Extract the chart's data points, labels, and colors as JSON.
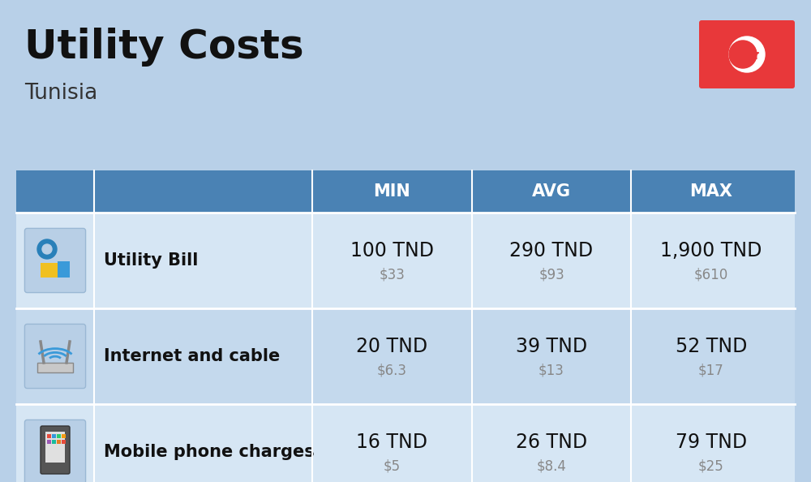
{
  "title": "Utility Costs",
  "subtitle": "Tunisia",
  "background_color": "#b8d0e8",
  "header_bg_color": "#4a82b4",
  "header_text_color": "#ffffff",
  "row_bg_color_1": "#d6e6f4",
  "row_bg_color_2": "#c4d9ed",
  "usd_color": "#888888",
  "tnd_fontsize": 17,
  "usd_fontsize": 12,
  "label_fontsize": 15,
  "header_fontsize": 15,
  "title_fontsize": 36,
  "subtitle_fontsize": 19,
  "flag_bg": "#e8383a",
  "rows": [
    {
      "label": "Utility Bill",
      "min_tnd": "100 TND",
      "min_usd": "$33",
      "avg_tnd": "290 TND",
      "avg_usd": "$93",
      "max_tnd": "1,900 TND",
      "max_usd": "$610"
    },
    {
      "label": "Internet and cable",
      "min_tnd": "20 TND",
      "min_usd": "$6.3",
      "avg_tnd": "39 TND",
      "avg_usd": "$13",
      "max_tnd": "52 TND",
      "max_usd": "$17"
    },
    {
      "label": "Mobile phone charges",
      "min_tnd": "16 TND",
      "min_usd": "$5",
      "avg_tnd": "26 TND",
      "avg_usd": "$8.4",
      "max_tnd": "79 TND",
      "max_usd": "$25"
    }
  ]
}
